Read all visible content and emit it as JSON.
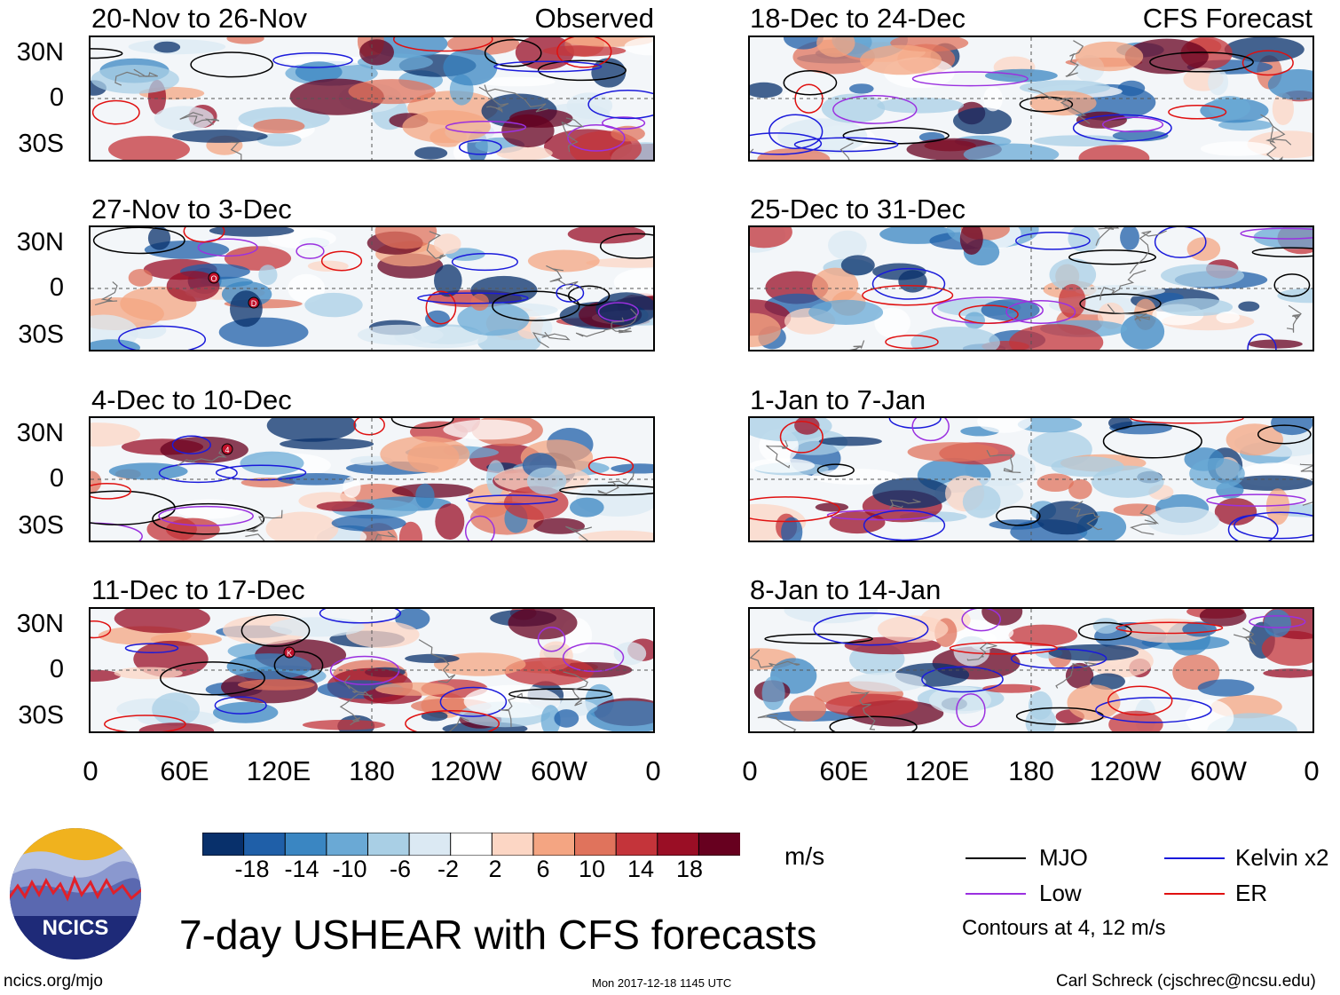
{
  "panels": {
    "left": [
      {
        "title": "20-Nov to 26-Nov",
        "tag": "Observed"
      },
      {
        "title": "27-Nov to 3-Dec"
      },
      {
        "title": "4-Dec to 10-Dec"
      },
      {
        "title": "11-Dec to 17-Dec"
      }
    ],
    "right": [
      {
        "title": "18-Dec to 24-Dec",
        "tag": "CFS Forecast"
      },
      {
        "title": "25-Dec to 31-Dec"
      },
      {
        "title": "1-Jan to 7-Jan"
      },
      {
        "title": "8-Jan to 14-Jan"
      }
    ]
  },
  "axes": {
    "lat_labels": [
      "30N",
      "0",
      "30S"
    ],
    "lon_labels": [
      "0",
      "60E",
      "120E",
      "180",
      "120W",
      "60W",
      "0"
    ]
  },
  "storm_markers": [
    {
      "panel": "27-Nov to 3-Dec",
      "letter": "O"
    },
    {
      "panel": "27-Nov to 3-Dec",
      "letter": "D"
    },
    {
      "panel": "4-Dec to 10-Dec",
      "letter": "4"
    },
    {
      "panel": "11-Dec to 17-Dec",
      "letter": "K"
    }
  ],
  "colorbar": {
    "labels": [
      "-18",
      "-14",
      "-10",
      "-6",
      "-2",
      "2",
      "6",
      "10",
      "14",
      "18"
    ],
    "colors": [
      "#08306b",
      "#1f5fa8",
      "#3a86c2",
      "#6aa9d5",
      "#a9cfe5",
      "#dbe9f3",
      "#ffffff",
      "#fcd6c4",
      "#f4a582",
      "#e0735c",
      "#c4343a",
      "#9a0e25",
      "#67001f"
    ],
    "unit": "m/s"
  },
  "legend": {
    "items": [
      {
        "label": "MJO",
        "color": "#000000"
      },
      {
        "label": "Kelvin x2",
        "color": "#1a1adb"
      },
      {
        "label": "Low",
        "color": "#9b30e0"
      },
      {
        "label": "ER",
        "color": "#e01010"
      }
    ],
    "note": "Contours at 4, 12 m/s"
  },
  "logo": {
    "text": "NCICS"
  },
  "footer": {
    "title": "7-day USHEAR with CFS forecasts",
    "url": "ncics.org/mjo",
    "timestamp": "Mon 2017-12-18 1145 UTC",
    "author": "Carl Schreck (cjschrec@ncsu.edu)"
  }
}
